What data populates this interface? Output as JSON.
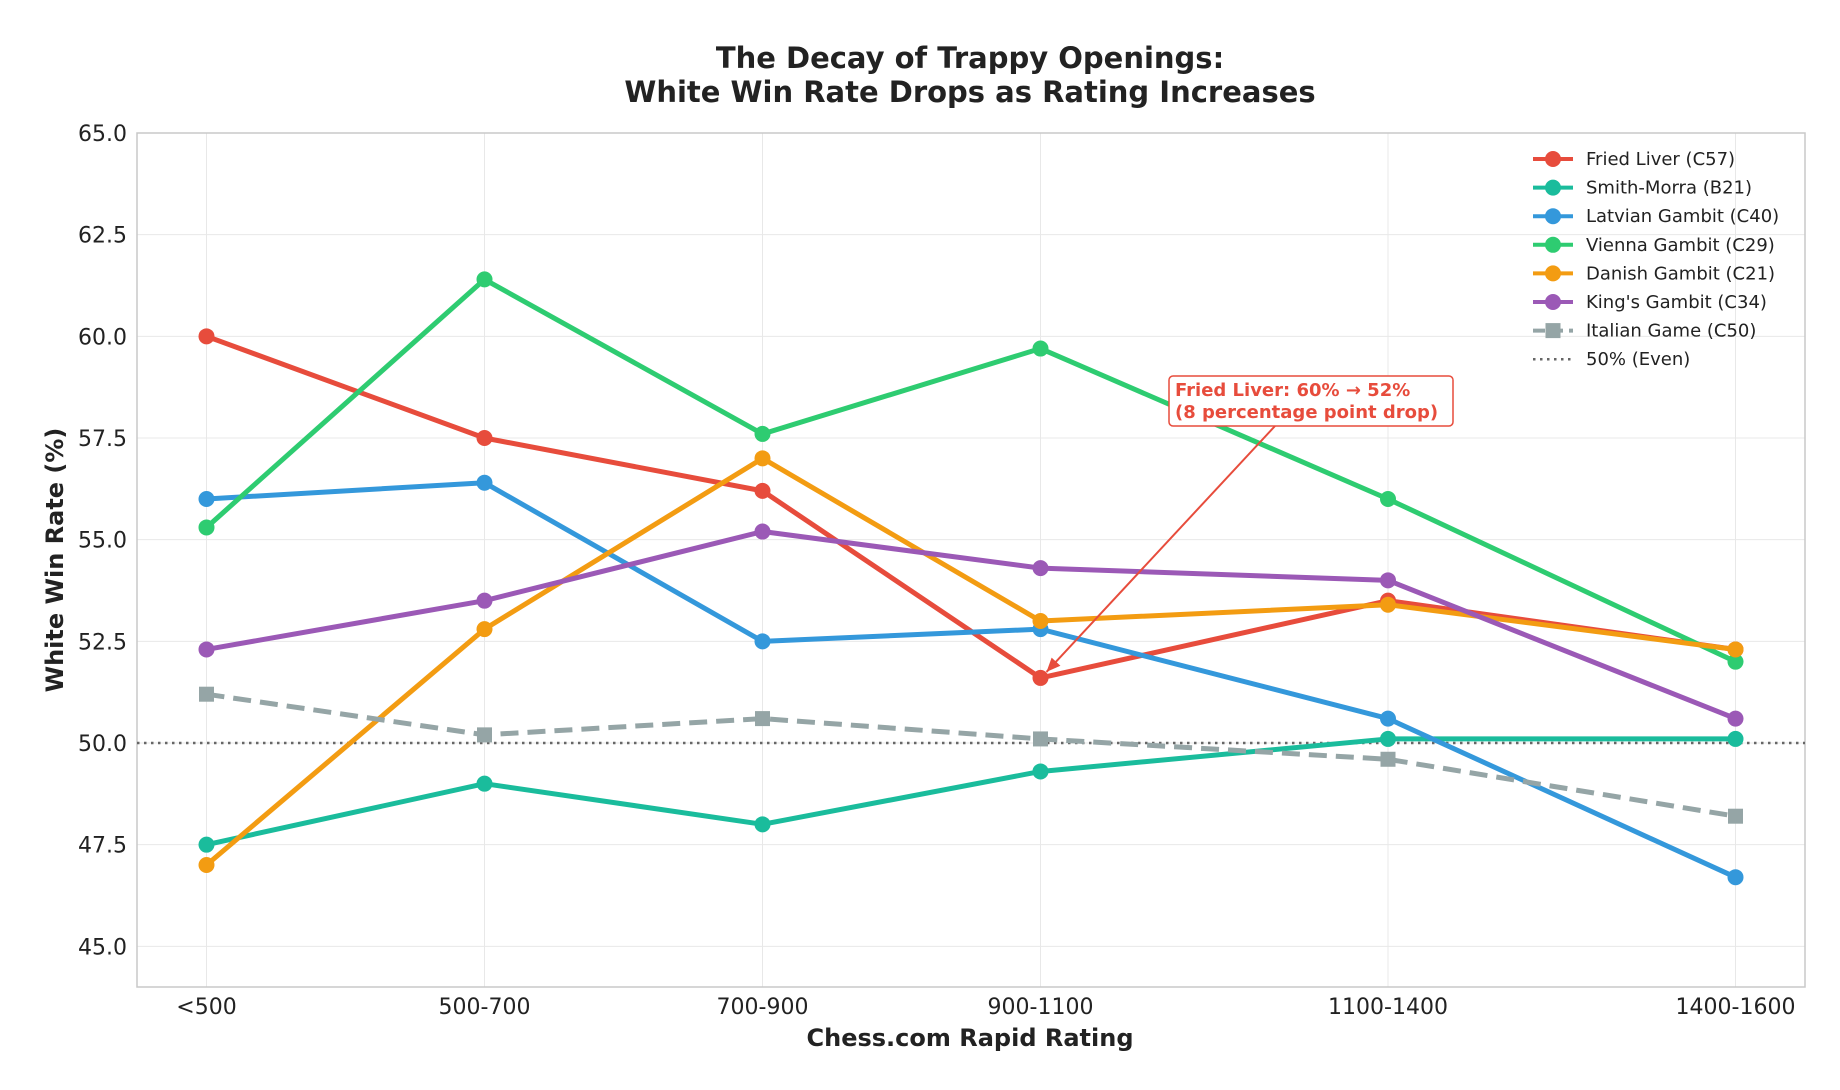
{
  "chart_data": {
    "type": "line",
    "title_lines": [
      "The Decay of Trappy Openings:",
      "White Win Rate Drops as Rating Increases"
    ],
    "xlabel": "Chess.com Rapid Rating",
    "ylabel": "White Win Rate (%)",
    "categories": [
      "<500",
      "500-700",
      "700-900",
      "900-1100",
      "1100-1400",
      "1400-1600"
    ],
    "x_positions": [
      400,
      600,
      800,
      1000,
      1250,
      1500
    ],
    "xlim": [
      350,
      1550
    ],
    "ylim": [
      44,
      65
    ],
    "yticks": [
      "45.0",
      "47.5",
      "50.0",
      "52.5",
      "55.0",
      "57.5",
      "60.0",
      "62.5",
      "65.0"
    ],
    "grid": true,
    "legend_position": "top-right",
    "series": [
      {
        "name": "Fried Liver (C57)",
        "color": "#e74c3c",
        "marker": "circle",
        "dash": "solid",
        "values": [
          60.0,
          57.5,
          56.2,
          51.6,
          53.5,
          52.3
        ]
      },
      {
        "name": "Smith-Morra (B21)",
        "color": "#1abc9c",
        "marker": "circle",
        "dash": "solid",
        "values": [
          47.5,
          49.0,
          48.0,
          49.3,
          50.1,
          50.1
        ]
      },
      {
        "name": "Latvian Gambit (C40)",
        "color": "#3498db",
        "marker": "circle",
        "dash": "solid",
        "values": [
          56.0,
          56.4,
          52.5,
          52.8,
          50.6,
          46.7
        ]
      },
      {
        "name": "Vienna Gambit (C29)",
        "color": "#2ecc71",
        "marker": "circle",
        "dash": "solid",
        "values": [
          55.3,
          61.4,
          57.6,
          59.7,
          56.0,
          52.0
        ]
      },
      {
        "name": "Danish Gambit (C21)",
        "color": "#f39c12",
        "marker": "circle",
        "dash": "solid",
        "values": [
          47.0,
          52.8,
          57.0,
          53.0,
          53.4,
          52.3
        ]
      },
      {
        "name": "King's Gambit (C34)",
        "color": "#9b59b6",
        "marker": "circle",
        "dash": "solid",
        "values": [
          52.3,
          53.5,
          55.2,
          54.3,
          54.0,
          50.6
        ]
      },
      {
        "name": "Italian Game (C50)",
        "color": "#95a5a6",
        "marker": "square",
        "dash": "dashed",
        "values": [
          51.2,
          50.2,
          50.6,
          50.1,
          49.6,
          48.2
        ]
      }
    ],
    "reference_line": {
      "name": "50% (Even)",
      "value": 50.0,
      "color": "#666666",
      "dash": "dotted"
    },
    "annotation": {
      "lines": [
        "Fried Liver: 60% → 52%",
        "(8 percentage point drop)"
      ],
      "color": "#e74c3c",
      "target_category": "900-1100",
      "target_value": 51.6
    }
  }
}
